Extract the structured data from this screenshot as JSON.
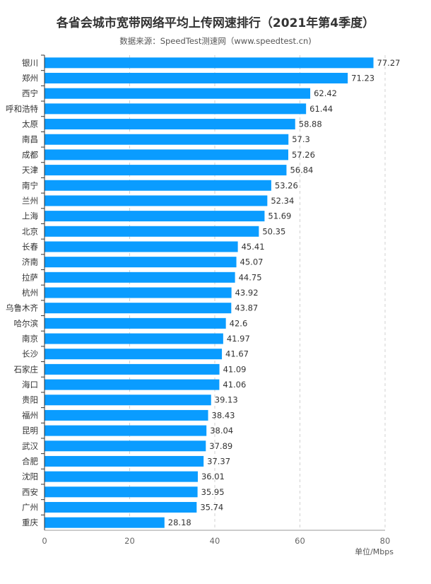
{
  "colors": {
    "bar": "#0a9cff",
    "grid": "#d0d0d0",
    "axis": "#333333"
  },
  "chart_data": {
    "type": "bar",
    "orientation": "horizontal",
    "title": "各省会城市宽带网络平均上传网速排行（2021年第4季度）",
    "subtitle": "数据来源：SpeedTest测速网（www.speedtest.cn)",
    "unit_label": "单位/Mbps",
    "xlim": [
      0,
      80
    ],
    "xticks": [
      0,
      20,
      40,
      60,
      80
    ],
    "grid": "vertical dashed",
    "categories": [
      "银川",
      "郑州",
      "西宁",
      "呼和浩特",
      "太原",
      "南昌",
      "成都",
      "天津",
      "南宁",
      "兰州",
      "上海",
      "北京",
      "长春",
      "济南",
      "拉萨",
      "杭州",
      "乌鲁木齐",
      "哈尔滨",
      "南京",
      "长沙",
      "石家庄",
      "海口",
      "贵阳",
      "福州",
      "昆明",
      "武汉",
      "合肥",
      "沈阳",
      "西安",
      "广州",
      "重庆"
    ],
    "values": [
      77.27,
      71.23,
      62.42,
      61.44,
      58.88,
      57.3,
      57.26,
      56.84,
      53.26,
      52.34,
      51.69,
      50.35,
      45.41,
      45.07,
      44.75,
      43.92,
      43.87,
      42.6,
      41.97,
      41.67,
      41.09,
      41.06,
      39.13,
      38.43,
      38.04,
      37.89,
      37.37,
      36.01,
      35.95,
      35.74,
      28.18
    ],
    "value_labels": [
      "77.27",
      "71.23",
      "62.42",
      "61.44",
      "58.88",
      "57.3",
      "57.26",
      "56.84",
      "53.26",
      "52.34",
      "51.69",
      "50.35",
      "45.41",
      "45.07",
      "44.75",
      "43.92",
      "43.87",
      "42.6",
      "41.97",
      "41.67",
      "41.09",
      "41.06",
      "39.13",
      "38.43",
      "38.04",
      "37.89",
      "37.37",
      "36.01",
      "35.95",
      "35.74",
      "28.18"
    ]
  }
}
